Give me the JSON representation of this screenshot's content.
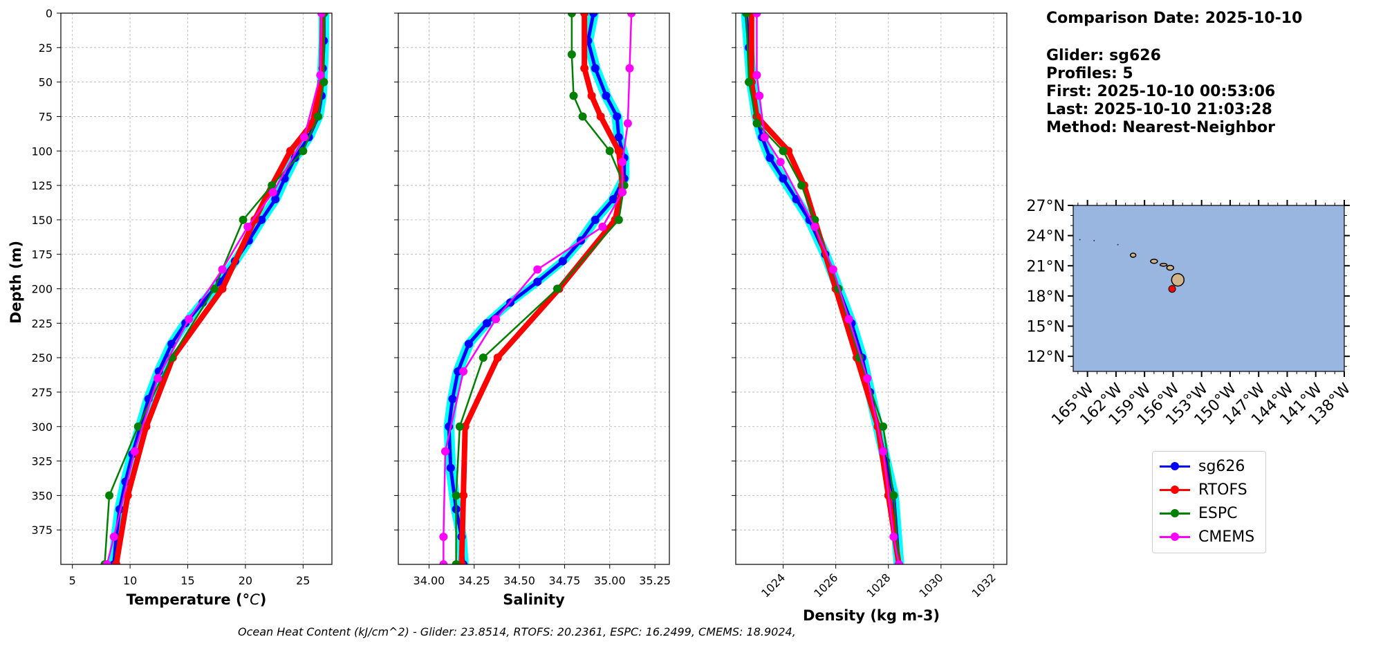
{
  "info": {
    "comparison_date": "Comparison Date: 2025-10-10",
    "glider": "Glider: sg626",
    "profiles": "Profiles: 5",
    "first": "First: 2025-10-10 00:53:06",
    "last": "Last: 2025-10-10 21:03:28",
    "method": "Method: Nearest-Neighbor"
  },
  "footer": "Ocean Heat Content (kJ/cm^2) - Glider: 23.8514,  RTOFS: 20.2361,  ESPC: 16.2499,  CMEMS: 18.9024,",
  "colors": {
    "sg626": "#0000ff",
    "RTOFS": "#ff0000",
    "ESPC": "#008000",
    "CMEMS": "#ff00ff",
    "glider_envelope": "#00ffff",
    "ocean": "#98b6e0",
    "land": "#d2b48c",
    "grid": "#b0b0b0"
  },
  "legend": [
    {
      "label": "sg626",
      "color": "#0000ff"
    },
    {
      "label": "RTOFS",
      "color": "#ff0000"
    },
    {
      "label": "ESPC",
      "color": "#008000"
    },
    {
      "label": "CMEMS",
      "color": "#ff00ff"
    }
  ],
  "chart_data": [
    {
      "type": "line",
      "xlabel": "Temperature (°C)",
      "ylabel": "Depth (m)",
      "xlim": [
        4,
        27.5
      ],
      "ylim": [
        400,
        0
      ],
      "xticks": [
        "5",
        "10",
        "15",
        "20",
        "25"
      ],
      "xtick_values": [
        5,
        10,
        15,
        20,
        25
      ],
      "yticks": [
        "0",
        "25",
        "50",
        "75",
        "100",
        "125",
        "150",
        "175",
        "200",
        "225",
        "250",
        "275",
        "300",
        "325",
        "350",
        "375"
      ],
      "grid": true,
      "series": [
        {
          "name": "sg626",
          "x": [
            26.8,
            26.8,
            26.7,
            26.6,
            26.3,
            25.5,
            24.3,
            23.4,
            22.6,
            21.4,
            20.3,
            19.1,
            17.8,
            16.3,
            14.8,
            13.6,
            12.5,
            11.6,
            10.9,
            10.2,
            9.6,
            9.1,
            8.8,
            8.6
          ],
          "y": [
            0,
            20,
            40,
            60,
            75,
            90,
            105,
            120,
            135,
            150,
            165,
            180,
            195,
            210,
            225,
            240,
            260,
            280,
            300,
            320,
            340,
            360,
            380,
            400
          ]
        },
        {
          "name": "RTOFS",
          "x": [
            26.7,
            26.6,
            25.8,
            23.9,
            22.3,
            20.8,
            18.0,
            13.7,
            11.4,
            9.8,
            8.8
          ],
          "y": [
            0,
            50,
            80,
            100,
            125,
            150,
            200,
            250,
            300,
            350,
            400
          ]
        },
        {
          "name": "ESPC",
          "x": [
            26.8,
            26.8,
            26.3,
            25.0,
            22.3,
            19.8,
            17.3,
            13.6,
            10.7,
            8.2,
            7.8
          ],
          "y": [
            0,
            50,
            75,
            100,
            125,
            150,
            200,
            250,
            300,
            350,
            400
          ]
        },
        {
          "name": "CMEMS",
          "x": [
            26.6,
            26.5,
            25.1,
            22.4,
            20.2,
            18.0,
            15.1,
            12.4,
            10.4,
            8.6,
            8.0
          ],
          "y": [
            0,
            45,
            90,
            130,
            155,
            186,
            222,
            265,
            318,
            380,
            400
          ]
        }
      ]
    },
    {
      "type": "line",
      "xlabel": "Salinity",
      "ylabel": "",
      "xlim": [
        33.83,
        35.33
      ],
      "ylim": [
        400,
        0
      ],
      "xticks": [
        "34.00",
        "34.25",
        "34.50",
        "34.75",
        "35.00",
        "35.25"
      ],
      "xtick_values": [
        34.0,
        34.25,
        34.5,
        34.75,
        35.0,
        35.25
      ],
      "grid": true,
      "series": [
        {
          "name": "sg626",
          "x": [
            34.91,
            34.88,
            34.92,
            34.98,
            35.04,
            35.05,
            35.08,
            35.08,
            35.02,
            34.92,
            34.84,
            34.74,
            34.6,
            34.45,
            34.32,
            34.22,
            34.16,
            34.13,
            34.11,
            34.12,
            34.15,
            34.18,
            34.19
          ],
          "y": [
            0,
            20,
            40,
            60,
            75,
            90,
            105,
            120,
            135,
            150,
            165,
            180,
            195,
            210,
            225,
            240,
            260,
            280,
            300,
            330,
            360,
            380,
            400
          ]
        },
        {
          "name": "RTOFS",
          "x": [
            34.86,
            34.86,
            34.9,
            34.95,
            35.05,
            35.07,
            35.03,
            34.72,
            34.38,
            34.2,
            34.19,
            34.18
          ],
          "y": [
            0,
            40,
            60,
            75,
            100,
            125,
            150,
            200,
            250,
            300,
            350,
            400
          ]
        },
        {
          "name": "ESPC",
          "x": [
            34.79,
            34.79,
            34.8,
            34.85,
            35.0,
            35.08,
            35.05,
            34.71,
            34.3,
            34.17,
            34.15,
            34.15
          ],
          "y": [
            0,
            30,
            60,
            75,
            100,
            125,
            150,
            200,
            250,
            300,
            350,
            400
          ]
        },
        {
          "name": "CMEMS",
          "x": [
            35.12,
            35.11,
            35.1,
            35.07,
            35.07,
            34.96,
            34.6,
            34.37,
            34.19,
            34.09,
            34.08,
            34.08
          ],
          "y": [
            0,
            40,
            80,
            108,
            130,
            155,
            186,
            222,
            260,
            318,
            380,
            400
          ]
        }
      ]
    },
    {
      "type": "line",
      "xlabel": "Density (kg m-3)",
      "ylabel": "",
      "xlim": [
        1022.2,
        1032.5
      ],
      "ylim": [
        400,
        0
      ],
      "xticks": [
        "1024",
        "1026",
        "1028",
        "1030",
        "1032"
      ],
      "xtick_values": [
        1024,
        1026,
        1028,
        1030,
        1032
      ],
      "grid": true,
      "series": [
        {
          "name": "sg626",
          "x": [
            1022.6,
            1022.7,
            1022.8,
            1023.0,
            1023.2,
            1023.5,
            1024.0,
            1024.5,
            1025.0,
            1025.6,
            1026.1,
            1026.6,
            1027.0,
            1027.3,
            1027.6,
            1027.9,
            1028.2,
            1028.4
          ],
          "y": [
            0,
            25,
            50,
            75,
            90,
            105,
            120,
            135,
            150,
            175,
            200,
            225,
            250,
            275,
            300,
            325,
            350,
            400
          ]
        },
        {
          "name": "RTOFS",
          "x": [
            1022.8,
            1022.8,
            1023.0,
            1024.2,
            1024.8,
            1025.2,
            1026.0,
            1026.8,
            1027.6,
            1028.0,
            1028.4
          ],
          "y": [
            0,
            50,
            75,
            100,
            125,
            150,
            200,
            250,
            300,
            350,
            400
          ]
        },
        {
          "name": "ESPC",
          "x": [
            1022.6,
            1022.7,
            1023.0,
            1024.0,
            1024.7,
            1025.2,
            1026.1,
            1026.9,
            1027.8,
            1028.2,
            1028.4
          ],
          "y": [
            0,
            50,
            80,
            100,
            125,
            150,
            200,
            250,
            300,
            350,
            400
          ]
        },
        {
          "name": "CMEMS",
          "x": [
            1023.0,
            1023.0,
            1023.1,
            1023.3,
            1023.9,
            1025.2,
            1025.9,
            1026.5,
            1027.2,
            1027.8,
            1028.2,
            1028.4
          ],
          "y": [
            0,
            45,
            60,
            90,
            108,
            155,
            186,
            222,
            265,
            318,
            380,
            400
          ]
        }
      ]
    }
  ],
  "map": {
    "lon_ticks": [
      "165°W",
      "162°W",
      "159°W",
      "156°W",
      "153°W",
      "150°W",
      "147°W",
      "144°W",
      "141°W",
      "138°W"
    ],
    "lon_values": [
      -165,
      -162,
      -159,
      -156,
      -153,
      -150,
      -147,
      -144,
      -141,
      -138
    ],
    "lat_ticks": [
      "27°N",
      "24°N",
      "21°N",
      "18°N",
      "15°N",
      "12°N"
    ],
    "lat_values": [
      27,
      24,
      21,
      18,
      15,
      12
    ],
    "lon_range": [
      -166.5,
      -138
    ],
    "lat_range": [
      10.5,
      27
    ],
    "glider_position": {
      "lon": -156.1,
      "lat": 18.7
    }
  }
}
